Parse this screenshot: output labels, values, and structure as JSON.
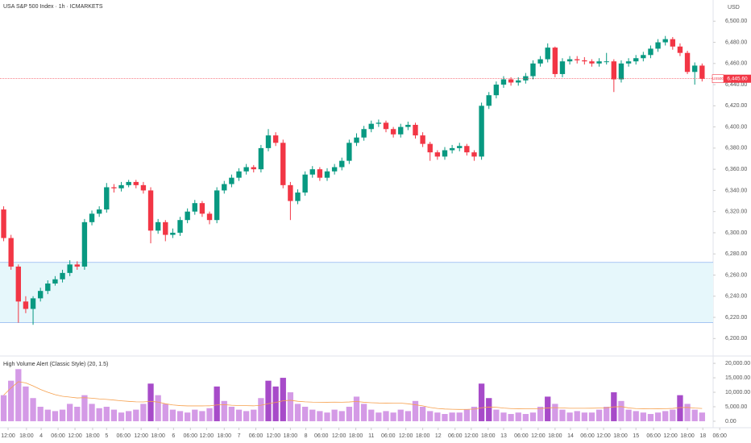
{
  "chart_data": {
    "type": "candlestick",
    "title": "USA S&P 500 Index · 1h · ICMARKETS",
    "currency": "USD",
    "up_color": "#089981",
    "down_color": "#f23645",
    "open": [
      6322,
      6295,
      6268,
      6235,
      6228,
      6238,
      6245,
      6252,
      6256,
      6262,
      6270,
      6268,
      6310,
      6318,
      6322,
      6343,
      6342,
      6345,
      6348,
      6345,
      6340,
      6302,
      6310,
      6298,
      6300,
      6312,
      6320,
      6328,
      6318,
      6312,
      6340,
      6346,
      6352,
      6358,
      6362,
      6360,
      6380,
      6392,
      6385,
      6345,
      6330,
      6338,
      6355,
      6360,
      6352,
      6358,
      6362,
      6368,
      6385,
      6390,
      6398,
      6403,
      6404,
      6398,
      6393,
      6400,
      6402,
      6392,
      6384,
      6376,
      6372,
      6378,
      6380,
      6382,
      6376,
      6372,
      6420,
      6430,
      6440,
      6445,
      6442,
      6444,
      6448,
      6460,
      6464,
      6475,
      6450,
      6462,
      6464,
      6463,
      6462,
      6460,
      6462,
      6462,
      6445,
      6460,
      6462,
      6465,
      6468,
      6474,
      6480,
      6483,
      6476,
      6470,
      6452,
      6458
    ],
    "high": [
      6325,
      6298,
      6270,
      6240,
      6240,
      6248,
      6255,
      6259,
      6265,
      6274,
      6273,
      6313,
      6321,
      6325,
      6347,
      6346,
      6348,
      6350,
      6350,
      6348,
      6343,
      6313,
      6312,
      6304,
      6315,
      6323,
      6331,
      6330,
      6320,
      6343,
      6349,
      6355,
      6361,
      6365,
      6364,
      6383,
      6398,
      6395,
      6388,
      6348,
      6341,
      6358,
      6363,
      6362,
      6361,
      6365,
      6371,
      6388,
      6394,
      6401,
      6406,
      6407,
      6406,
      6400,
      6403,
      6405,
      6404,
      6395,
      6386,
      6378,
      6381,
      6383,
      6385,
      6384,
      6378,
      6423,
      6433,
      6443,
      6448,
      6447,
      6447,
      6451,
      6463,
      6467,
      6479,
      6476,
      6465,
      6467,
      6467,
      6466,
      6464,
      6465,
      6470,
      6464,
      6463,
      6465,
      6468,
      6471,
      6477,
      6483,
      6486,
      6485,
      6479,
      6472,
      6461,
      6460
    ],
    "low": [
      6292,
      6265,
      6215,
      6224,
      6213,
      6235,
      6242,
      6250,
      6253,
      6259,
      6265,
      6265,
      6307,
      6315,
      6319,
      6338,
      6339,
      6343,
      6342,
      6337,
      6290,
      6299,
      6292,
      6295,
      6297,
      6309,
      6317,
      6315,
      6308,
      6309,
      6337,
      6343,
      6349,
      6355,
      6357,
      6357,
      6377,
      6382,
      6342,
      6312,
      6327,
      6335,
      6352,
      6349,
      6349,
      6355,
      6359,
      6365,
      6382,
      6387,
      6395,
      6400,
      6395,
      6390,
      6390,
      6397,
      6389,
      6381,
      6368,
      6369,
      6369,
      6375,
      6377,
      6373,
      6368,
      6369,
      6417,
      6427,
      6437,
      6439,
      6439,
      6441,
      6445,
      6457,
      6461,
      6447,
      6447,
      6459,
      6460,
      6459,
      6457,
      6457,
      6459,
      6433,
      6442,
      6457,
      6459,
      6462,
      6465,
      6471,
      6477,
      6473,
      6467,
      6450,
      6440,
      6443
    ],
    "close": [
      6295,
      6268,
      6235,
      6228,
      6238,
      6245,
      6252,
      6256,
      6262,
      6270,
      6268,
      6310,
      6318,
      6322,
      6343,
      6342,
      6345,
      6348,
      6345,
      6340,
      6302,
      6310,
      6298,
      6300,
      6312,
      6320,
      6328,
      6318,
      6312,
      6340,
      6346,
      6352,
      6358,
      6362,
      6360,
      6380,
      6392,
      6385,
      6345,
      6330,
      6338,
      6355,
      6360,
      6352,
      6358,
      6362,
      6368,
      6385,
      6390,
      6398,
      6403,
      6404,
      6398,
      6393,
      6400,
      6402,
      6392,
      6384,
      6376,
      6372,
      6378,
      6380,
      6382,
      6376,
      6372,
      6420,
      6430,
      6440,
      6445,
      6442,
      6444,
      6448,
      6460,
      6464,
      6475,
      6450,
      6462,
      6464,
      6463,
      6462,
      6460,
      6462,
      6462,
      6445,
      6460,
      6462,
      6465,
      6468,
      6474,
      6480,
      6483,
      6476,
      6470,
      6452,
      6458,
      6445.6
    ],
    "xlim": [
      -0.5,
      96.5
    ],
    "xticks": [
      {
        "value": 0.6,
        "label": "12:00"
      },
      {
        "value": 3.1,
        "label": "18:00"
      },
      {
        "value": 5.1,
        "label": "4"
      },
      {
        "value": 7.4,
        "label": "06:00"
      },
      {
        "value": 9.7,
        "label": "12:00"
      },
      {
        "value": 12.1,
        "label": "18:00"
      },
      {
        "value": 14,
        "label": "5"
      },
      {
        "value": 16.3,
        "label": "06:00"
      },
      {
        "value": 18.7,
        "label": "12:00"
      },
      {
        "value": 21,
        "label": "18:00"
      },
      {
        "value": 23.1,
        "label": "6"
      },
      {
        "value": 25.4,
        "label": "06:00"
      },
      {
        "value": 27.6,
        "label": "12:00"
      },
      {
        "value": 30,
        "label": "18:00"
      },
      {
        "value": 32,
        "label": "7"
      },
      {
        "value": 34.3,
        "label": "06:00"
      },
      {
        "value": 36.7,
        "label": "12:00"
      },
      {
        "value": 39,
        "label": "18:00"
      },
      {
        "value": 41.1,
        "label": "8"
      },
      {
        "value": 43.2,
        "label": "06:00"
      },
      {
        "value": 45.6,
        "label": "12:00"
      },
      {
        "value": 47.9,
        "label": "18:00"
      },
      {
        "value": 50,
        "label": "11"
      },
      {
        "value": 52.3,
        "label": "06:00"
      },
      {
        "value": 54.7,
        "label": "12:00"
      },
      {
        "value": 57,
        "label": "18:00"
      },
      {
        "value": 59.1,
        "label": "12"
      },
      {
        "value": 61.4,
        "label": "06:00"
      },
      {
        "value": 63.6,
        "label": "12:00"
      },
      {
        "value": 65.9,
        "label": "18:00"
      },
      {
        "value": 68,
        "label": "13"
      },
      {
        "value": 70.4,
        "label": "06:00"
      },
      {
        "value": 72.7,
        "label": "12:00"
      },
      {
        "value": 75,
        "label": "18:00"
      },
      {
        "value": 77.1,
        "label": "14"
      },
      {
        "value": 79.4,
        "label": "06:00"
      },
      {
        "value": 81.6,
        "label": "12:00"
      },
      {
        "value": 83.9,
        "label": "18:00"
      },
      {
        "value": 86,
        "label": "15"
      },
      {
        "value": 88.4,
        "label": "06:00"
      },
      {
        "value": 90.7,
        "label": "12:00"
      },
      {
        "value": 93,
        "label": "18:00"
      },
      {
        "value": 95.1,
        "label": "18"
      },
      {
        "value": 97.4,
        "label": "06:00"
      }
    ],
    "ylim": [
      6185,
      6520
    ],
    "yticks": [
      {
        "value": 6200,
        "label": "6,200.00"
      },
      {
        "value": 6220,
        "label": "6,220.00"
      },
      {
        "value": 6240,
        "label": "6,240.00"
      },
      {
        "value": 6260,
        "label": "6,260.00"
      },
      {
        "value": 6280,
        "label": "6,280.00"
      },
      {
        "value": 6300,
        "label": "6,300.00"
      },
      {
        "value": 6320,
        "label": "6,320.00"
      },
      {
        "value": 6340,
        "label": "6,340.00"
      },
      {
        "value": 6360,
        "label": "6,360.00"
      },
      {
        "value": 6380,
        "label": "6,380.00"
      },
      {
        "value": 6400,
        "label": "6,400.00"
      },
      {
        "value": 6420,
        "label": "6,420.00"
      },
      {
        "value": 6440,
        "label": "6,440.00"
      },
      {
        "value": 6460,
        "label": "6,460.00"
      },
      {
        "value": 6480,
        "label": "6,480.00"
      },
      {
        "value": 6500,
        "label": "6,500.00"
      }
    ],
    "last_price": {
      "value": 6445.6,
      "label": "6,445.60",
      "symbol": "US500",
      "color": "#f23645"
    },
    "zone": {
      "low": 6215,
      "high": 6272,
      "color": "#e6f7fb",
      "border": "#8fb4f0"
    },
    "volume": {
      "title": "High Volume Alert (Classic Style) (20, 1.5)",
      "ma_period": 20,
      "alert_multiplier": 1.5,
      "color": "#d49ae6",
      "alert_color": "#a74bc9",
      "ma_color": "#f6a04d",
      "values": [
        9000,
        14000,
        18000,
        12000,
        8000,
        5000,
        4000,
        3500,
        4000,
        6000,
        5000,
        9000,
        6000,
        4500,
        5000,
        4000,
        3000,
        3500,
        4000,
        6000,
        13000,
        9000,
        6000,
        4000,
        3500,
        3000,
        4000,
        3500,
        4500,
        12000,
        7000,
        5000,
        4000,
        3500,
        4000,
        8000,
        14000,
        12000,
        15000,
        10000,
        6000,
        5000,
        4000,
        3500,
        3000,
        4000,
        3500,
        5000,
        8500,
        6000,
        4000,
        3000,
        3500,
        3000,
        4000,
        3500,
        7000,
        5000,
        3500,
        3000,
        2500,
        3000,
        3000,
        4000,
        5000,
        13000,
        8000,
        4000,
        3000,
        2500,
        3000,
        2500,
        3000,
        5000,
        8500,
        6000,
        4000,
        3000,
        3500,
        3000,
        3000,
        4000,
        5000,
        10000,
        7000,
        4000,
        3500,
        3000,
        2500,
        3000,
        3500,
        4000,
        9000,
        6000,
        4000,
        3000
      ],
      "ylim": [
        -1400,
        21700
      ],
      "yticks": [
        {
          "value": 0,
          "label": "0.00"
        },
        {
          "value": 5000,
          "label": "5,000.00"
        },
        {
          "value": 10000,
          "label": "10,000.00"
        },
        {
          "value": 15000,
          "label": "15,000.00"
        },
        {
          "value": 20000,
          "label": "20,000.00"
        }
      ]
    }
  }
}
